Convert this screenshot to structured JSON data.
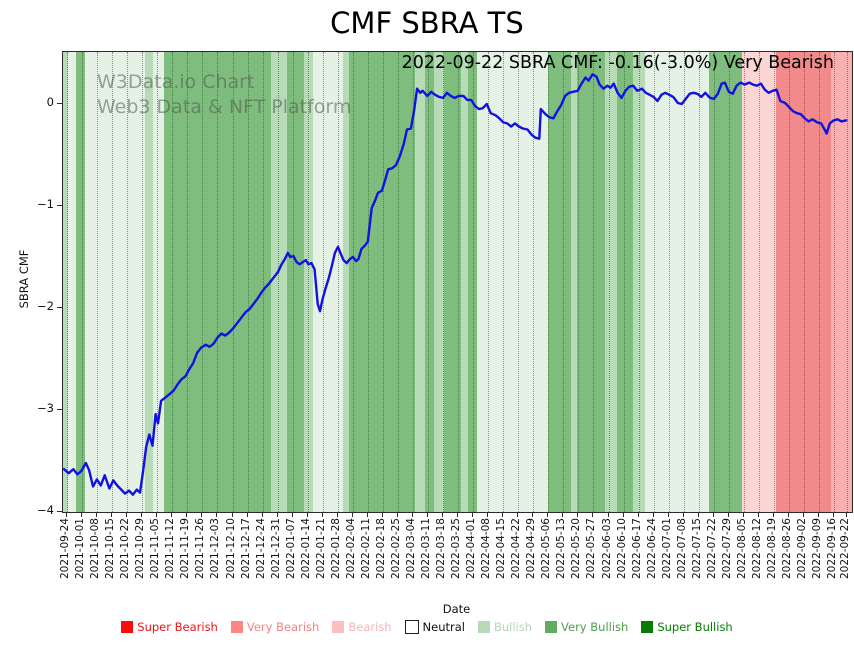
{
  "title": "CMF SBRA TS",
  "annotation": "2022-09-22 SBRA CMF: -0.16(-3.0%) Very Bearish",
  "watermark": {
    "line1": "W3Data.io Chart",
    "line2": "Web3 Data & NFT Platform"
  },
  "axes": {
    "y_label": "SBRA CMF",
    "x_label": "Date",
    "y_ticks": [
      {
        "label": "0",
        "value": 0
      },
      {
        "label": "−1",
        "value": -1
      },
      {
        "label": "−2",
        "value": -2
      },
      {
        "label": "−3",
        "value": -3
      },
      {
        "label": "−4",
        "value": -4
      }
    ],
    "x_tick_dates": [
      "2021-09-24",
      "2021-10-01",
      "2021-10-08",
      "2021-10-15",
      "2021-10-22",
      "2021-10-29",
      "2021-11-05",
      "2021-11-12",
      "2021-11-19",
      "2021-11-26",
      "2021-12-03",
      "2021-12-10",
      "2021-12-17",
      "2021-12-24",
      "2021-12-31",
      "2022-01-07",
      "2022-01-14",
      "2022-01-21",
      "2022-01-28",
      "2022-02-04",
      "2022-02-11",
      "2022-02-18",
      "2022-02-25",
      "2022-03-04",
      "2022-03-11",
      "2022-03-18",
      "2022-03-25",
      "2022-04-01",
      "2022-04-08",
      "2022-04-15",
      "2022-04-22",
      "2022-04-29",
      "2022-05-06",
      "2022-05-13",
      "2022-05-20",
      "2022-05-27",
      "2022-06-03",
      "2022-06-10",
      "2022-06-17",
      "2022-06-24",
      "2022-07-01",
      "2022-07-08",
      "2022-07-15",
      "2022-07-22",
      "2022-07-29",
      "2022-08-05",
      "2022-08-12",
      "2022-08-19",
      "2022-08-26",
      "2022-09-02",
      "2022-09-09",
      "2022-09-16",
      "2022-09-22"
    ]
  },
  "legend": [
    {
      "label": "Super Bearish",
      "swatch": "#fb0d0d",
      "text_color": "#f01212",
      "border": false
    },
    {
      "label": "Very Bearish",
      "swatch": "#ff8484",
      "text_color": "#f58383",
      "border": false
    },
    {
      "label": "Bearish",
      "swatch": "#fcc0c0",
      "text_color": "#f8b4b4",
      "border": false
    },
    {
      "label": "Neutral",
      "swatch": "#ffffff",
      "text_color": "#111111",
      "border": true
    },
    {
      "label": "Bullish",
      "swatch": "#b8dab8",
      "text_color": "#b2d6b2",
      "border": false
    },
    {
      "label": "Very Bullish",
      "swatch": "#62ac62",
      "text_color": "#4f9e4f",
      "border": false
    },
    {
      "label": "Super Bullish",
      "swatch": "#067c06",
      "text_color": "#077d07",
      "border": false
    }
  ],
  "chart_data": {
    "type": "line",
    "title": "CMF SBRA TS",
    "xlabel": "Date",
    "ylabel": "SBRA CMF",
    "x_range": [
      "2021-09-24",
      "2022-09-22"
    ],
    "ylim": [
      -4.0,
      0.51
    ],
    "grid": "weekly vertical dotted gridlines",
    "line_color": "#1212e0",
    "last_value": -0.16,
    "last_change_pct": -3.0,
    "last_signal": "Very Bearish",
    "x_encoding": "fraction of date range 2021-09-24 .. 2022-09-22",
    "points": [
      [
        0.0,
        -3.58
      ],
      [
        0.006,
        -3.62
      ],
      [
        0.012,
        -3.58
      ],
      [
        0.017,
        -3.63
      ],
      [
        0.022,
        -3.6
      ],
      [
        0.028,
        -3.52
      ],
      [
        0.032,
        -3.59
      ],
      [
        0.037,
        -3.75
      ],
      [
        0.042,
        -3.68
      ],
      [
        0.047,
        -3.74
      ],
      [
        0.052,
        -3.64
      ],
      [
        0.058,
        -3.77
      ],
      [
        0.063,
        -3.69
      ],
      [
        0.068,
        -3.74
      ],
      [
        0.073,
        -3.78
      ],
      [
        0.078,
        -3.82
      ],
      [
        0.083,
        -3.79
      ],
      [
        0.088,
        -3.83
      ],
      [
        0.093,
        -3.78
      ],
      [
        0.097,
        -3.81
      ],
      [
        0.101,
        -3.6
      ],
      [
        0.105,
        -3.36
      ],
      [
        0.109,
        -3.24
      ],
      [
        0.113,
        -3.35
      ],
      [
        0.117,
        -3.04
      ],
      [
        0.12,
        -3.13
      ],
      [
        0.124,
        -2.91
      ],
      [
        0.129,
        -2.88
      ],
      [
        0.134,
        -2.85
      ],
      [
        0.14,
        -2.81
      ],
      [
        0.145,
        -2.75
      ],
      [
        0.15,
        -2.7
      ],
      [
        0.155,
        -2.67
      ],
      [
        0.16,
        -2.6
      ],
      [
        0.165,
        -2.54
      ],
      [
        0.17,
        -2.44
      ],
      [
        0.175,
        -2.39
      ],
      [
        0.181,
        -2.36
      ],
      [
        0.186,
        -2.38
      ],
      [
        0.191,
        -2.35
      ],
      [
        0.196,
        -2.29
      ],
      [
        0.201,
        -2.25
      ],
      [
        0.206,
        -2.27
      ],
      [
        0.211,
        -2.24
      ],
      [
        0.216,
        -2.2
      ],
      [
        0.222,
        -2.14
      ],
      [
        0.227,
        -2.09
      ],
      [
        0.232,
        -2.04
      ],
      [
        0.237,
        -2.01
      ],
      [
        0.242,
        -1.96
      ],
      [
        0.247,
        -1.91
      ],
      [
        0.252,
        -1.85
      ],
      [
        0.257,
        -1.8
      ],
      [
        0.262,
        -1.76
      ],
      [
        0.268,
        -1.7
      ],
      [
        0.273,
        -1.65
      ],
      [
        0.278,
        -1.57
      ],
      [
        0.282,
        -1.52
      ],
      [
        0.286,
        -1.46
      ],
      [
        0.289,
        -1.5
      ],
      [
        0.293,
        -1.49
      ],
      [
        0.297,
        -1.55
      ],
      [
        0.301,
        -1.57
      ],
      [
        0.305,
        -1.55
      ],
      [
        0.309,
        -1.53
      ],
      [
        0.312,
        -1.57
      ],
      [
        0.316,
        -1.56
      ],
      [
        0.32,
        -1.62
      ],
      [
        0.324,
        -1.96
      ],
      [
        0.327,
        -2.03
      ],
      [
        0.33,
        -1.92
      ],
      [
        0.334,
        -1.81
      ],
      [
        0.338,
        -1.71
      ],
      [
        0.342,
        -1.59
      ],
      [
        0.346,
        -1.46
      ],
      [
        0.35,
        -1.4
      ],
      [
        0.353,
        -1.46
      ],
      [
        0.357,
        -1.53
      ],
      [
        0.361,
        -1.56
      ],
      [
        0.365,
        -1.52
      ],
      [
        0.369,
        -1.5
      ],
      [
        0.373,
        -1.54
      ],
      [
        0.376,
        -1.52
      ],
      [
        0.38,
        -1.42
      ],
      [
        0.384,
        -1.39
      ],
      [
        0.388,
        -1.35
      ],
      [
        0.393,
        -1.02
      ],
      [
        0.397,
        -0.95
      ],
      [
        0.401,
        -0.87
      ],
      [
        0.406,
        -0.85
      ],
      [
        0.41,
        -0.75
      ],
      [
        0.414,
        -0.64
      ],
      [
        0.419,
        -0.63
      ],
      [
        0.424,
        -0.6
      ],
      [
        0.429,
        -0.51
      ],
      [
        0.434,
        -0.39
      ],
      [
        0.438,
        -0.25
      ],
      [
        0.443,
        -0.24
      ],
      [
        0.447,
        -0.07
      ],
      [
        0.451,
        0.15
      ],
      [
        0.455,
        0.11
      ],
      [
        0.458,
        0.13
      ],
      [
        0.464,
        0.08
      ],
      [
        0.469,
        0.12
      ],
      [
        0.474,
        0.09
      ],
      [
        0.479,
        0.07
      ],
      [
        0.484,
        0.06
      ],
      [
        0.489,
        0.11
      ],
      [
        0.494,
        0.08
      ],
      [
        0.499,
        0.06
      ],
      [
        0.504,
        0.08
      ],
      [
        0.51,
        0.08
      ],
      [
        0.515,
        0.04
      ],
      [
        0.52,
        0.04
      ],
      [
        0.525,
        -0.02
      ],
      [
        0.53,
        -0.05
      ],
      [
        0.535,
        -0.04
      ],
      [
        0.54,
        0.0
      ],
      [
        0.545,
        -0.09
      ],
      [
        0.551,
        -0.11
      ],
      [
        0.556,
        -0.14
      ],
      [
        0.561,
        -0.18
      ],
      [
        0.566,
        -0.19
      ],
      [
        0.571,
        -0.22
      ],
      [
        0.576,
        -0.19
      ],
      [
        0.581,
        -0.22
      ],
      [
        0.586,
        -0.24
      ],
      [
        0.592,
        -0.25
      ],
      [
        0.597,
        -0.3
      ],
      [
        0.602,
        -0.33
      ],
      [
        0.607,
        -0.34
      ],
      [
        0.609,
        -0.05
      ],
      [
        0.615,
        -0.1
      ],
      [
        0.62,
        -0.13
      ],
      [
        0.625,
        -0.14
      ],
      [
        0.63,
        -0.07
      ],
      [
        0.635,
        -0.01
      ],
      [
        0.64,
        0.08
      ],
      [
        0.645,
        0.11
      ],
      [
        0.65,
        0.12
      ],
      [
        0.656,
        0.13
      ],
      [
        0.661,
        0.2
      ],
      [
        0.666,
        0.26
      ],
      [
        0.67,
        0.23
      ],
      [
        0.675,
        0.29
      ],
      [
        0.68,
        0.27
      ],
      [
        0.684,
        0.19
      ],
      [
        0.689,
        0.15
      ],
      [
        0.694,
        0.18
      ],
      [
        0.698,
        0.16
      ],
      [
        0.702,
        0.2
      ],
      [
        0.707,
        0.11
      ],
      [
        0.712,
        0.06
      ],
      [
        0.717,
        0.13
      ],
      [
        0.722,
        0.17
      ],
      [
        0.727,
        0.18
      ],
      [
        0.732,
        0.13
      ],
      [
        0.738,
        0.15
      ],
      [
        0.743,
        0.11
      ],
      [
        0.748,
        0.09
      ],
      [
        0.753,
        0.07
      ],
      [
        0.758,
        0.03
      ],
      [
        0.763,
        0.09
      ],
      [
        0.768,
        0.11
      ],
      [
        0.773,
        0.09
      ],
      [
        0.778,
        0.07
      ],
      [
        0.784,
        0.01
      ],
      [
        0.789,
        0.0
      ],
      [
        0.794,
        0.05
      ],
      [
        0.799,
        0.1
      ],
      [
        0.804,
        0.11
      ],
      [
        0.809,
        0.1
      ],
      [
        0.814,
        0.07
      ],
      [
        0.819,
        0.11
      ],
      [
        0.825,
        0.06
      ],
      [
        0.83,
        0.05
      ],
      [
        0.835,
        0.1
      ],
      [
        0.84,
        0.2
      ],
      [
        0.844,
        0.21
      ],
      [
        0.849,
        0.12
      ],
      [
        0.854,
        0.1
      ],
      [
        0.859,
        0.18
      ],
      [
        0.864,
        0.21
      ],
      [
        0.869,
        0.19
      ],
      [
        0.875,
        0.21
      ],
      [
        0.88,
        0.19
      ],
      [
        0.885,
        0.18
      ],
      [
        0.89,
        0.2
      ],
      [
        0.895,
        0.14
      ],
      [
        0.9,
        0.11
      ],
      [
        0.905,
        0.13
      ],
      [
        0.91,
        0.14
      ],
      [
        0.915,
        0.03
      ],
      [
        0.921,
        0.01
      ],
      [
        0.926,
        -0.03
      ],
      [
        0.931,
        -0.07
      ],
      [
        0.936,
        -0.09
      ],
      [
        0.941,
        -0.1
      ],
      [
        0.946,
        -0.14
      ],
      [
        0.951,
        -0.17
      ],
      [
        0.956,
        -0.15
      ],
      [
        0.962,
        -0.18
      ],
      [
        0.967,
        -0.19
      ],
      [
        0.972,
        -0.26
      ],
      [
        0.974,
        -0.29
      ],
      [
        0.978,
        -0.19
      ],
      [
        0.983,
        -0.16
      ],
      [
        0.988,
        -0.15
      ],
      [
        0.993,
        -0.17
      ],
      [
        0.999,
        -0.16
      ]
    ],
    "band_colors": {
      "faint_bullish": "#e6f1e6",
      "bullish": "#b7dab7",
      "very_bullish": "#7ebd7e",
      "bearish": "#fbd4d4",
      "very_bearish": "#f18a8a",
      "faint_bearish": "#f9b0b0"
    },
    "background_bands": [
      {
        "s": 0.0,
        "e": 0.006,
        "c": "bullish"
      },
      {
        "s": 0.006,
        "e": 0.016,
        "c": "faint_bullish"
      },
      {
        "s": 0.016,
        "e": 0.028,
        "c": "very_bullish"
      },
      {
        "s": 0.028,
        "e": 0.104,
        "c": "faint_bullish"
      },
      {
        "s": 0.104,
        "e": 0.114,
        "c": "bullish"
      },
      {
        "s": 0.114,
        "e": 0.128,
        "c": "faint_bullish"
      },
      {
        "s": 0.128,
        "e": 0.264,
        "c": "very_bullish"
      },
      {
        "s": 0.264,
        "e": 0.284,
        "c": "bullish"
      },
      {
        "s": 0.284,
        "e": 0.305,
        "c": "very_bullish"
      },
      {
        "s": 0.305,
        "e": 0.317,
        "c": "bullish"
      },
      {
        "s": 0.317,
        "e": 0.355,
        "c": "faint_bullish"
      },
      {
        "s": 0.355,
        "e": 0.362,
        "c": "bullish"
      },
      {
        "s": 0.362,
        "e": 0.446,
        "c": "very_bullish"
      },
      {
        "s": 0.446,
        "e": 0.459,
        "c": "bullish"
      },
      {
        "s": 0.459,
        "e": 0.47,
        "c": "very_bullish"
      },
      {
        "s": 0.47,
        "e": 0.483,
        "c": "bullish"
      },
      {
        "s": 0.483,
        "e": 0.504,
        "c": "very_bullish"
      },
      {
        "s": 0.504,
        "e": 0.513,
        "c": "bullish"
      },
      {
        "s": 0.513,
        "e": 0.525,
        "c": "very_bullish"
      },
      {
        "s": 0.525,
        "e": 0.615,
        "c": "faint_bullish"
      },
      {
        "s": 0.615,
        "e": 0.644,
        "c": "very_bullish"
      },
      {
        "s": 0.644,
        "e": 0.651,
        "c": "bullish"
      },
      {
        "s": 0.651,
        "e": 0.687,
        "c": "very_bullish"
      },
      {
        "s": 0.687,
        "e": 0.702,
        "c": "bullish"
      },
      {
        "s": 0.702,
        "e": 0.722,
        "c": "very_bullish"
      },
      {
        "s": 0.722,
        "e": 0.738,
        "c": "bullish"
      },
      {
        "s": 0.738,
        "e": 0.819,
        "c": "faint_bullish"
      },
      {
        "s": 0.819,
        "e": 0.861,
        "c": "very_bullish"
      },
      {
        "s": 0.861,
        "e": 0.904,
        "c": "bearish"
      },
      {
        "s": 0.904,
        "e": 0.973,
        "c": "very_bearish"
      },
      {
        "s": 0.973,
        "e": 1.0,
        "c": "faint_bearish"
      }
    ]
  }
}
